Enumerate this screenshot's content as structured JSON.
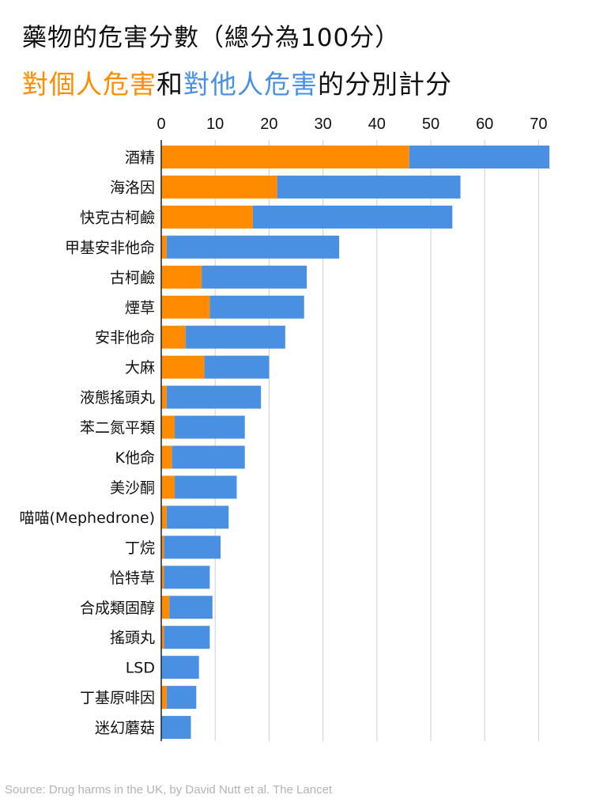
{
  "title": {
    "line1": "藥物的危害分數（總分為100分）",
    "line2_part1": "對個人危害",
    "line2_part2": "和",
    "line2_part3": "對他人危害",
    "line2_part4": "的分別計分"
  },
  "source": "Source: Drug harms in the UK, by David Nutt et al. The Lancet",
  "colors": {
    "self": "#FF8C00",
    "others": "#4A90E2"
  },
  "chart_data": {
    "type": "bar",
    "orientation": "horizontal",
    "stacked": true,
    "x_ticks": [
      0,
      10,
      20,
      30,
      40,
      50,
      60,
      70
    ],
    "xlim": [
      0,
      72
    ],
    "grid": true,
    "categories": [
      "酒精",
      "海洛因",
      "快克古柯鹼",
      "甲基安非他命",
      "古柯鹼",
      "煙草",
      "安非他命",
      "大麻",
      "液態搖頭丸",
      "苯二氮平類",
      "K他命",
      "美沙酮",
      "喵喵(Mephedrone)",
      "丁烷",
      "恰特草",
      "合成類固醇",
      "搖頭丸",
      "LSD",
      "丁基原啡因",
      "迷幻蘑菇"
    ],
    "series": [
      {
        "key": "self",
        "values": [
          46,
          21.5,
          17,
          1,
          7.5,
          9,
          4.5,
          8,
          1,
          2.5,
          2,
          2.5,
          1,
          0.5,
          0.5,
          1.5,
          0.5,
          0,
          1,
          0
        ]
      },
      {
        "key": "others",
        "values": [
          26,
          34,
          37,
          32,
          19.5,
          17.5,
          18.5,
          12,
          17.5,
          13,
          13.5,
          11.5,
          11.5,
          10.5,
          8.5,
          8,
          8.5,
          7,
          5.5,
          5.5
        ]
      }
    ]
  }
}
